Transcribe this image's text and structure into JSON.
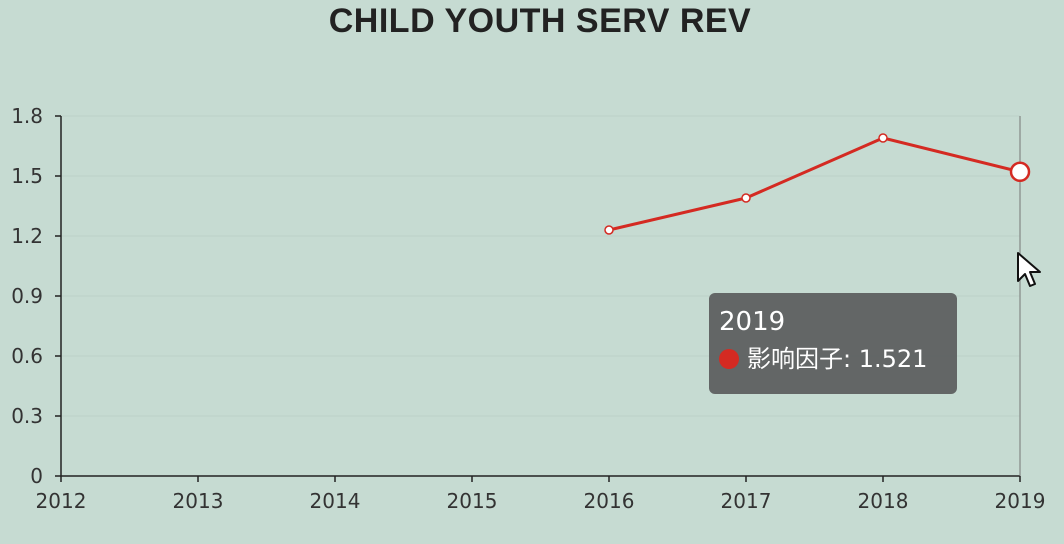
{
  "chart_data": {
    "type": "line",
    "title": "CHILD YOUTH SERV REV",
    "x": [
      "2012",
      "2013",
      "2014",
      "2015",
      "2016",
      "2017",
      "2018",
      "2019"
    ],
    "y_ticks": [
      "0",
      "0.3",
      "0.6",
      "0.9",
      "1.2",
      "1.5",
      "1.8"
    ],
    "ylim": [
      0,
      1.8
    ],
    "series": [
      {
        "name": "影响因子",
        "values": [
          null,
          null,
          null,
          null,
          1.23,
          1.39,
          1.69,
          1.521
        ],
        "color": "#d42a22"
      }
    ],
    "grid": true,
    "highlighted_index": 7
  },
  "tooltip": {
    "title": "2019",
    "label": "影响因子",
    "value": "1.521",
    "text": "影响因子: 1.521"
  },
  "colors": {
    "background": "#c6dbd2",
    "axis": "#222222",
    "grid": "#bcd2c8",
    "series": "#d42a22",
    "tooltip_bg": "#5a5c5c"
  }
}
